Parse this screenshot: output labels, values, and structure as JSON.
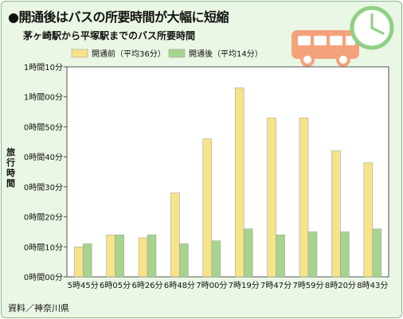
{
  "header": {
    "title": "●開通後はバスの所要時間が大幅に短縮",
    "subtitle": "茅ヶ崎駅から平塚駅までのバス所要時間",
    "source": "資料／神奈川県",
    "icons": [
      "bus-icon",
      "clock-icon"
    ]
  },
  "colors": {
    "background": "#eaf7e4",
    "plot_background": "#ffffff",
    "before_bar": "#f7e38a",
    "after_bar": "#a6d48e",
    "bus": "#f4a27a",
    "clock": "#8fcf86"
  },
  "chart_data": {
    "type": "bar",
    "ylabel": "旅行時間",
    "categories": [
      "5時45分",
      "6時05分",
      "6時26分",
      "6時48分",
      "7時00分",
      "7時19分",
      "7時47分",
      "7時59分",
      "8時20分",
      "8時43分"
    ],
    "y_ticks": [
      "0時間00分",
      "0時間10分",
      "0時間20分",
      "0時間30分",
      "0時間40分",
      "0時間50分",
      "1時間00分",
      "1時間10分"
    ],
    "ylim": [
      0,
      70
    ],
    "grid": false,
    "legend_position": "top-left",
    "series": [
      {
        "name": "開通前（平均36分）",
        "values": [
          10,
          14,
          13,
          28,
          46,
          63,
          53,
          53,
          42,
          38
        ]
      },
      {
        "name": "開通後（平均14分）",
        "values": [
          11,
          14,
          14,
          11,
          12,
          16,
          14,
          15,
          15,
          16
        ]
      }
    ]
  }
}
